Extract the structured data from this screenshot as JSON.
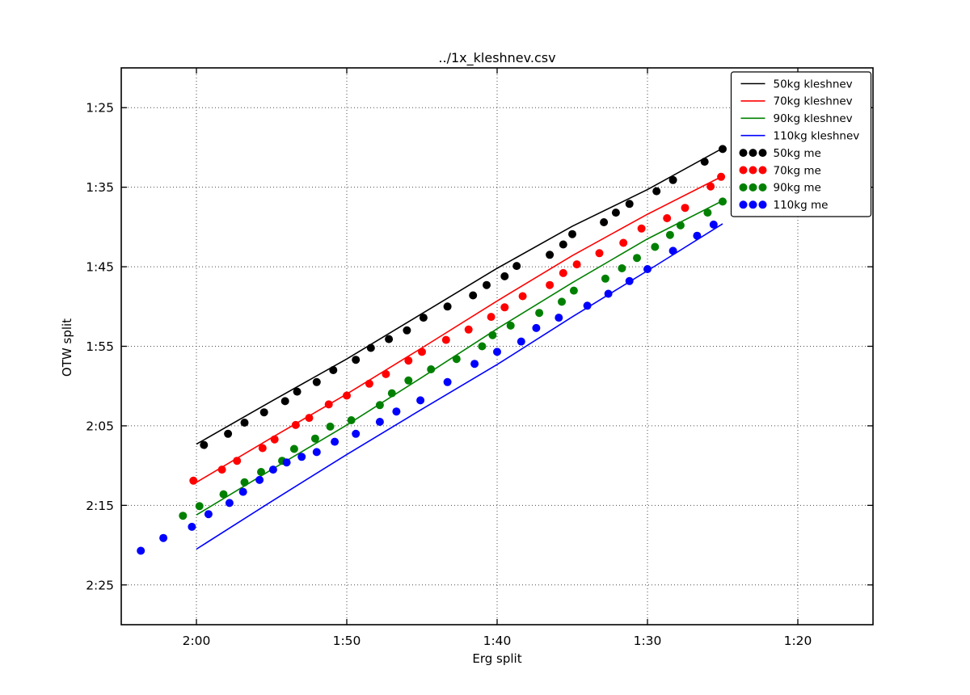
{
  "title": "../1x_kleshnev.csv",
  "chart_data": {
    "type": "line+scatter",
    "title": "../1x_kleshnev.csv",
    "x_axis": {
      "label": "Erg split",
      "units": "mm:ss per 500m",
      "reversed": true,
      "range_seconds": [
        125,
        75
      ],
      "tick_seconds": [
        120,
        110,
        100,
        90,
        80
      ],
      "tick_labels": [
        "2:00",
        "1:50",
        "1:40",
        "1:30",
        "1:20"
      ]
    },
    "y_axis": {
      "label": "OTW split",
      "units": "mm:ss per 500m",
      "reversed": true,
      "range_seconds": [
        80,
        150
      ],
      "tick_seconds": [
        85,
        95,
        105,
        115,
        125,
        135,
        145
      ],
      "tick_labels": [
        "1:25",
        "1:35",
        "1:45",
        "1:55",
        "2:05",
        "2:15",
        "2:25"
      ]
    },
    "grid": "dotted",
    "legend_position": "upper right",
    "series": [
      {
        "name": "50kg kleshnev",
        "type": "line",
        "color": "#000000",
        "points": [
          [
            120,
            127.3
          ],
          [
            115,
            121.9
          ],
          [
            110,
            116.6
          ],
          [
            105,
            110.9
          ],
          [
            100,
            105.2
          ],
          [
            95,
            99.9
          ],
          [
            90,
            95.3
          ],
          [
            85,
            90.1
          ]
        ]
      },
      {
        "name": "70kg kleshnev",
        "type": "line",
        "color": "#ff0000",
        "points": [
          [
            120,
            132.1
          ],
          [
            115,
            126.5
          ],
          [
            110,
            121.0
          ],
          [
            105,
            115.2
          ],
          [
            100,
            109.3
          ],
          [
            95,
            103.6
          ],
          [
            90,
            98.4
          ],
          [
            85,
            93.6
          ]
        ]
      },
      {
        "name": "90kg kleshnev",
        "type": "line",
        "color": "#008000",
        "points": [
          [
            120,
            136.2
          ],
          [
            115,
            130.5
          ],
          [
            110,
            124.9
          ],
          [
            105,
            118.9
          ],
          [
            100,
            112.8
          ],
          [
            95,
            107.0
          ],
          [
            90,
            101.5
          ],
          [
            85,
            96.7
          ]
        ]
      },
      {
        "name": "110kg kleshnev",
        "type": "line",
        "color": "#0000ff",
        "points": [
          [
            120,
            140.5
          ],
          [
            115,
            134.5
          ],
          [
            110,
            128.6
          ],
          [
            105,
            122.9
          ],
          [
            100,
            117.3
          ],
          [
            95,
            111.3
          ],
          [
            90,
            105.5
          ],
          [
            85,
            99.6
          ]
        ]
      },
      {
        "name": "50kg me",
        "type": "scatter",
        "color": "#000000",
        "points": [
          [
            119.5,
            127.4
          ],
          [
            117.9,
            126.0
          ],
          [
            116.8,
            124.6
          ],
          [
            115.5,
            123.3
          ],
          [
            114.1,
            121.9
          ],
          [
            113.3,
            120.7
          ],
          [
            112.0,
            119.5
          ],
          [
            110.9,
            118.0
          ],
          [
            109.4,
            116.7
          ],
          [
            108.4,
            115.2
          ],
          [
            107.2,
            114.1
          ],
          [
            106.0,
            113.0
          ],
          [
            104.9,
            111.4
          ],
          [
            103.3,
            110.0
          ],
          [
            101.6,
            108.6
          ],
          [
            100.7,
            107.3
          ],
          [
            99.5,
            106.2
          ],
          [
            98.7,
            104.9
          ],
          [
            96.5,
            103.5
          ],
          [
            95.6,
            102.2
          ],
          [
            95.0,
            100.9
          ],
          [
            92.9,
            99.4
          ],
          [
            92.1,
            98.2
          ],
          [
            91.2,
            97.1
          ],
          [
            89.4,
            95.5
          ],
          [
            88.3,
            94.1
          ],
          [
            86.2,
            91.8
          ],
          [
            85.0,
            90.2
          ]
        ]
      },
      {
        "name": "70kg me",
        "type": "scatter",
        "color": "#ff0000",
        "points": [
          [
            120.2,
            131.9
          ],
          [
            118.3,
            130.5
          ],
          [
            117.3,
            129.4
          ],
          [
            115.6,
            127.8
          ],
          [
            114.8,
            126.7
          ],
          [
            113.4,
            124.9
          ],
          [
            112.5,
            124.0
          ],
          [
            111.2,
            122.3
          ],
          [
            110.0,
            121.2
          ],
          [
            108.5,
            119.7
          ],
          [
            107.4,
            118.5
          ],
          [
            105.9,
            116.8
          ],
          [
            105.0,
            115.7
          ],
          [
            103.4,
            114.2
          ],
          [
            101.9,
            112.9
          ],
          [
            100.4,
            111.3
          ],
          [
            99.5,
            110.1
          ],
          [
            98.3,
            108.7
          ],
          [
            96.5,
            107.3
          ],
          [
            95.6,
            105.8
          ],
          [
            94.7,
            104.7
          ],
          [
            93.2,
            103.3
          ],
          [
            91.6,
            102.0
          ],
          [
            90.4,
            100.2
          ],
          [
            88.7,
            98.9
          ],
          [
            87.5,
            97.6
          ],
          [
            85.8,
            94.9
          ],
          [
            85.1,
            93.7
          ]
        ]
      },
      {
        "name": "90kg me",
        "type": "scatter",
        "color": "#008000",
        "points": [
          [
            120.9,
            136.3
          ],
          [
            119.8,
            135.1
          ],
          [
            118.2,
            133.6
          ],
          [
            116.8,
            132.1
          ],
          [
            115.7,
            130.8
          ],
          [
            114.3,
            129.4
          ],
          [
            113.5,
            127.9
          ],
          [
            112.1,
            126.6
          ],
          [
            111.1,
            125.1
          ],
          [
            109.7,
            124.3
          ],
          [
            107.8,
            122.4
          ],
          [
            107.0,
            120.9
          ],
          [
            105.9,
            119.3
          ],
          [
            104.4,
            117.9
          ],
          [
            102.7,
            116.6
          ],
          [
            101.0,
            115.0
          ],
          [
            100.3,
            113.6
          ],
          [
            99.1,
            112.4
          ],
          [
            97.2,
            110.8
          ],
          [
            95.7,
            109.4
          ],
          [
            94.9,
            108.0
          ],
          [
            92.8,
            106.5
          ],
          [
            91.7,
            105.2
          ],
          [
            90.7,
            103.9
          ],
          [
            89.5,
            102.5
          ],
          [
            88.5,
            101.0
          ],
          [
            87.8,
            99.8
          ],
          [
            86.0,
            98.2
          ],
          [
            85.0,
            96.8
          ]
        ]
      },
      {
        "name": "110kg me",
        "type": "scatter",
        "color": "#0000ff",
        "points": [
          [
            123.7,
            140.7
          ],
          [
            122.2,
            139.1
          ],
          [
            120.3,
            137.7
          ],
          [
            119.2,
            136.1
          ],
          [
            117.8,
            134.7
          ],
          [
            116.9,
            133.3
          ],
          [
            115.8,
            131.8
          ],
          [
            114.9,
            130.5
          ],
          [
            114.0,
            129.6
          ],
          [
            113.0,
            128.9
          ],
          [
            112.0,
            128.3
          ],
          [
            110.8,
            127.0
          ],
          [
            109.4,
            126.0
          ],
          [
            107.8,
            124.5
          ],
          [
            106.7,
            123.2
          ],
          [
            105.1,
            121.8
          ],
          [
            103.3,
            119.5
          ],
          [
            101.5,
            117.2
          ],
          [
            100.0,
            115.7
          ],
          [
            98.4,
            114.4
          ],
          [
            97.4,
            112.7
          ],
          [
            95.9,
            111.4
          ],
          [
            94.0,
            109.9
          ],
          [
            92.6,
            108.4
          ],
          [
            91.2,
            106.8
          ],
          [
            90.0,
            105.3
          ],
          [
            88.3,
            103.0
          ],
          [
            86.7,
            101.1
          ],
          [
            85.6,
            99.7
          ]
        ]
      }
    ]
  }
}
